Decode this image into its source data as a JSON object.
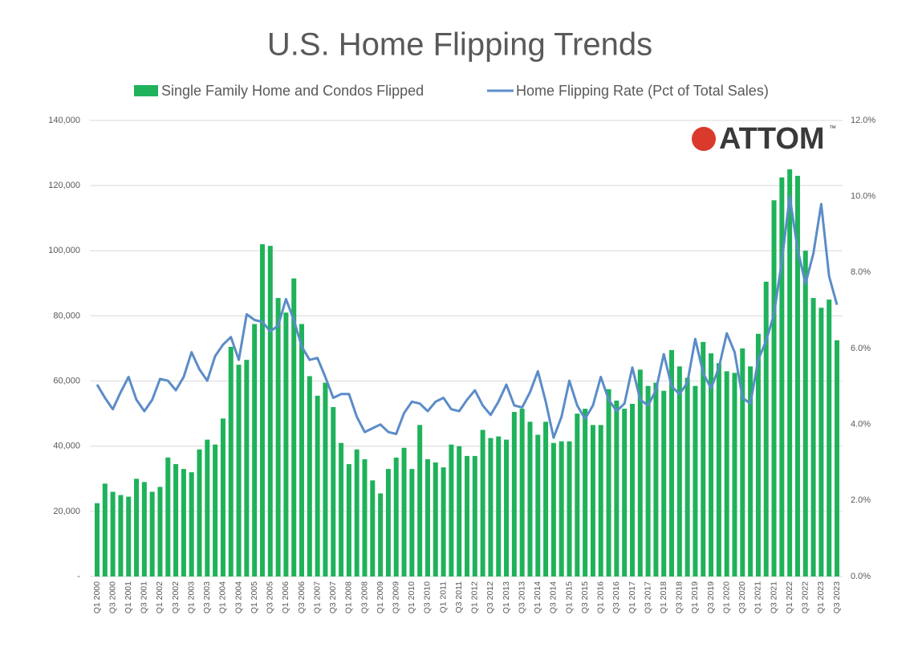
{
  "chart_data": {
    "type": "bar_line",
    "title": "U.S. Home Flipping Trends",
    "logo": "ATTOM",
    "logo_mark": "™",
    "categories": [
      "Q1 2000",
      null,
      "Q3 2000",
      null,
      "Q1 2001",
      null,
      "Q3 2001",
      null,
      "Q1 2002",
      null,
      "Q3 2002",
      null,
      "Q1 2003",
      null,
      "Q3 2003",
      null,
      "Q1 2004",
      null,
      "Q3 2004",
      null,
      "Q1 2005",
      null,
      "Q3 2005",
      null,
      "Q1 2006",
      null,
      "Q3 2006",
      null,
      "Q1 2007",
      null,
      "Q3 2007",
      null,
      "Q1 2008",
      null,
      "Q3 2008",
      null,
      "Q1 2009",
      null,
      "Q3 2009",
      null,
      "Q1 2010",
      null,
      "Q3 2010",
      null,
      "Q1 2011",
      null,
      "Q3 2011",
      null,
      "Q1 2012",
      null,
      "Q3 2012",
      null,
      "Q1 2013",
      null,
      "Q3 2013",
      null,
      "Q1 2014",
      null,
      "Q3 2014",
      null,
      "Q1 2015",
      null,
      "Q3 2015",
      null,
      "Q1 2016",
      null,
      "Q3 2016",
      null,
      "Q1 2017",
      null,
      "Q3 2017",
      null,
      "Q1 2018",
      null,
      "Q3 2018",
      null,
      "Q1 2019",
      null,
      "Q3 2019",
      null,
      "Q1 2020",
      null,
      "Q3 2020",
      null,
      "Q1 2021",
      null,
      "Q3 2021",
      null,
      "Q1 2022",
      null,
      "Q3 2022",
      null,
      "Q1 2023",
      null,
      "Q3 2023"
    ],
    "series": [
      {
        "name": "Single Family Home and Condos Flipped",
        "color": "#1fb25a",
        "kind": "bar",
        "values": [
          22500,
          28500,
          26000,
          25000,
          24500,
          30000,
          29000,
          26000,
          27500,
          36500,
          34500,
          33000,
          32000,
          39000,
          42000,
          40500,
          48500,
          70500,
          65000,
          66500,
          77500,
          102000,
          101500,
          85500,
          81000,
          91500,
          77500,
          61500,
          55500,
          59500,
          52000,
          41000,
          34500,
          39000,
          36000,
          29500,
          25500,
          33000,
          36500,
          39500,
          33000,
          46500,
          36000,
          35000,
          33500,
          40500,
          40000,
          37000,
          37000,
          45000,
          42500,
          43000,
          42000,
          50500,
          51500,
          47500,
          43500,
          47500,
          41000,
          41500,
          41500,
          50000,
          51500,
          46500,
          46500,
          57500,
          54000,
          51500,
          53000,
          63500,
          58500,
          59500,
          57000,
          69500,
          64500,
          61000,
          58500,
          72000,
          68500,
          65500,
          63000,
          62500,
          70000,
          64500,
          74500,
          90500,
          115500,
          122500,
          125000,
          123000,
          100000,
          85500,
          82500,
          85000,
          72500
        ]
      },
      {
        "name": "Home Flipping Rate (Pct of Total Sales)",
        "color": "#5b8cc8",
        "kind": "line",
        "axis": "y2",
        "values": [
          5.05,
          4.7,
          4.4,
          4.85,
          5.25,
          4.65,
          4.35,
          4.65,
          5.2,
          5.15,
          4.9,
          5.25,
          5.9,
          5.45,
          5.15,
          5.8,
          6.1,
          6.3,
          5.7,
          6.9,
          6.75,
          6.7,
          6.45,
          6.6,
          7.3,
          6.75,
          6.05,
          5.7,
          5.75,
          5.25,
          4.7,
          4.8,
          4.8,
          4.2,
          3.8,
          3.9,
          4.0,
          3.8,
          3.75,
          4.3,
          4.6,
          4.55,
          4.35,
          4.6,
          4.7,
          4.4,
          4.35,
          4.65,
          4.9,
          4.5,
          4.25,
          4.6,
          5.05,
          4.5,
          4.45,
          4.85,
          5.4,
          4.6,
          3.65,
          4.2,
          5.15,
          4.5,
          4.15,
          4.5,
          5.25,
          4.65,
          4.35,
          4.55,
          5.5,
          4.65,
          4.5,
          4.9,
          5.85,
          5.0,
          4.8,
          5.1,
          6.25,
          5.35,
          4.95,
          5.5,
          6.4,
          5.9,
          4.7,
          4.55,
          5.7,
          6.2,
          6.9,
          8.3,
          10.0,
          8.6,
          7.7,
          8.5,
          9.8,
          7.9,
          7.15
        ]
      }
    ],
    "ylim": [
      0,
      140000
    ],
    "yticks": [
      {
        "value": 0,
        "label": "-"
      },
      {
        "value": 20000,
        "label": "20,000"
      },
      {
        "value": 40000,
        "label": "40,000"
      },
      {
        "value": 60000,
        "label": "60,000"
      },
      {
        "value": 80000,
        "label": "80,000"
      },
      {
        "value": 100000,
        "label": "100,000"
      },
      {
        "value": 120000,
        "label": "120,000"
      },
      {
        "value": 140000,
        "label": "140,000"
      }
    ],
    "y2lim": [
      0,
      12
    ],
    "y2ticks": [
      {
        "value": 0,
        "label": "0.0%"
      },
      {
        "value": 2,
        "label": "2.0%"
      },
      {
        "value": 4,
        "label": "4.0%"
      },
      {
        "value": 6,
        "label": "6.0%"
      },
      {
        "value": 8,
        "label": "8.0%"
      },
      {
        "value": 10,
        "label": "10.0%"
      },
      {
        "value": 12,
        "label": "12.0%"
      }
    ],
    "grid": true,
    "legend": "top"
  }
}
